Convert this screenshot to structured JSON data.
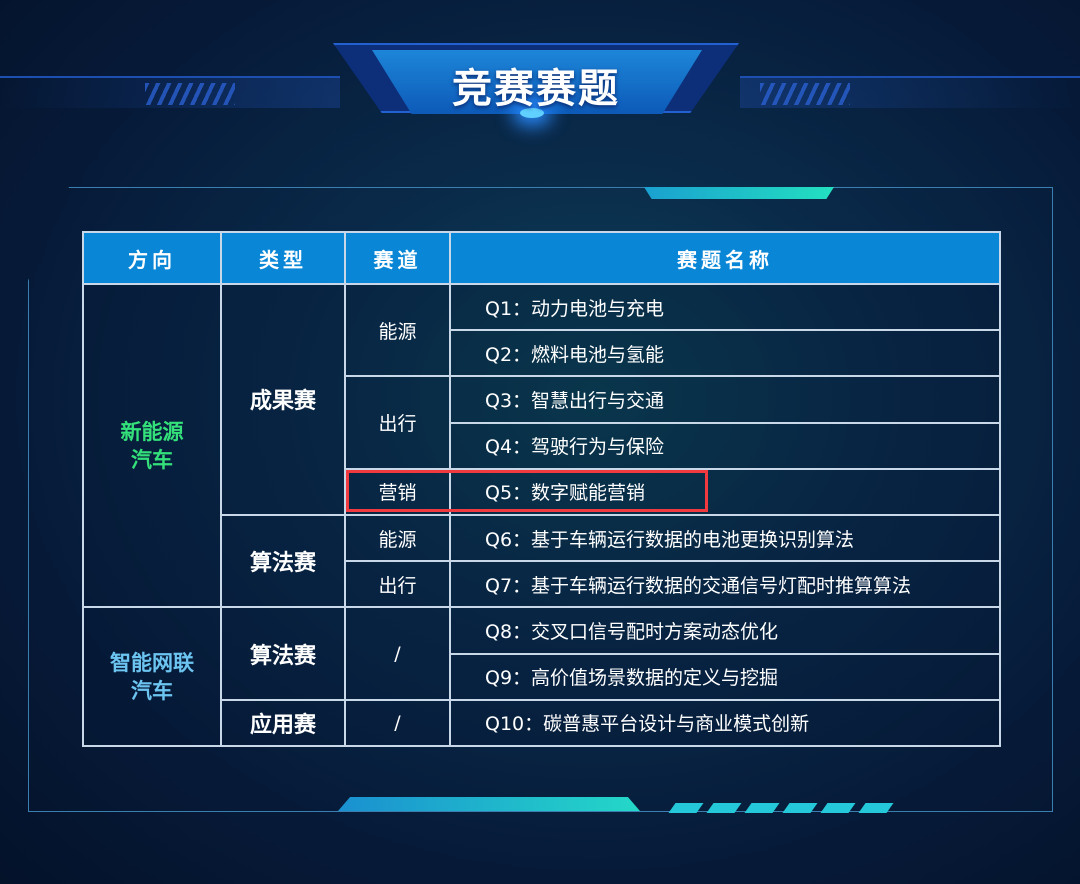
{
  "title": "竞赛赛题",
  "colors": {
    "header": "#0a86d6",
    "highlight": "#f03a40",
    "dir1": "#34e07a",
    "dir2": "#6cc4f0"
  },
  "headers": [
    "方向",
    "类型",
    "赛道",
    "赛题名称"
  ],
  "directions": [
    "新能源\n汽车",
    "智能网联\n汽车"
  ],
  "types": [
    "成果赛",
    "算法赛",
    "算法赛",
    "应用赛"
  ],
  "tracks": [
    "能源",
    "出行",
    "营销",
    "能源",
    "出行",
    "/",
    "/"
  ],
  "questions": [
    "Q1：动力电池与充电",
    "Q2：燃料电池与氢能",
    "Q3：智慧出行与交通",
    "Q4：驾驶行为与保险",
    "Q5：数字赋能营销",
    "Q6：基于车辆运行数据的电池更换识别算法",
    "Q7：基于车辆运行数据的交通信号灯配时推算算法",
    "Q8：交叉口信号配时方案动态优化",
    "Q9：高价值场景数据的定义与挖掘",
    "Q10：碳普惠平台设计与商业模式创新"
  ],
  "highlighted_question": "Q5：数字赋能营销"
}
